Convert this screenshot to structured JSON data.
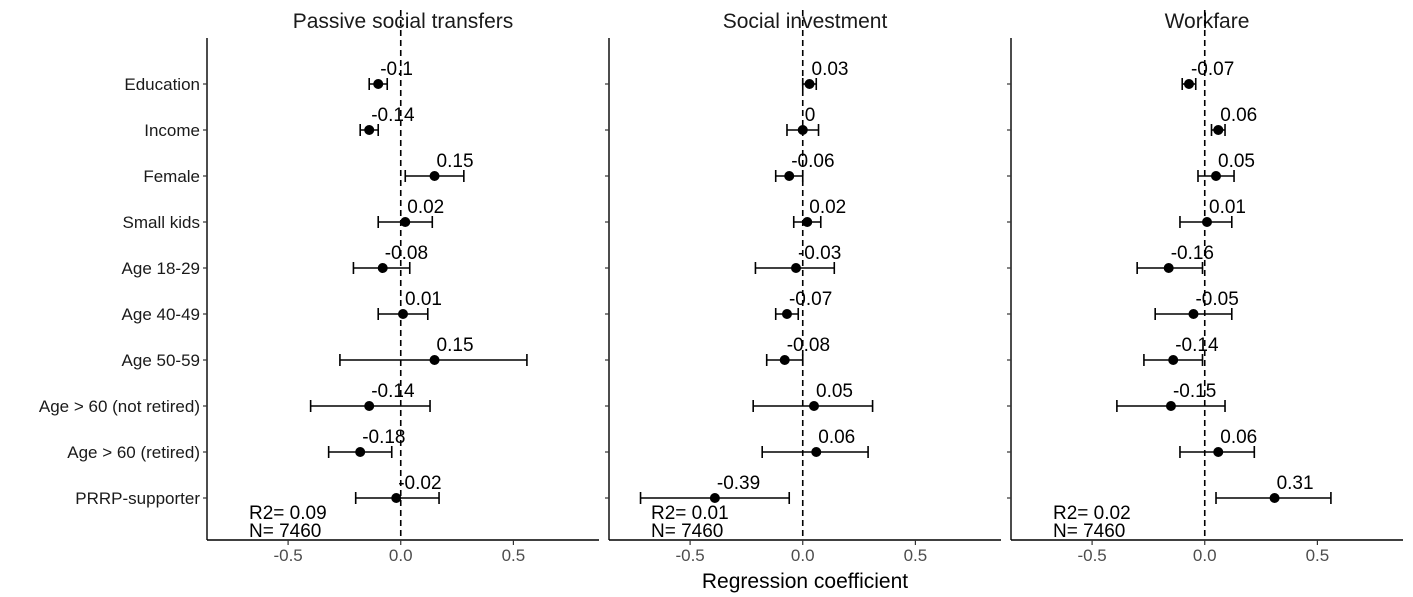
{
  "chart_data": {
    "type": "coefficient-plot",
    "xlabel": "Regression coefficient",
    "xticks": [
      -0.5,
      0.0,
      0.5
    ],
    "xtick_labels": [
      "-0.5",
      "0.0",
      "0.5"
    ],
    "xlim": [
      -0.86,
      0.88
    ],
    "reference_line": 0,
    "categories": [
      "Education",
      "Income",
      "Female",
      "Small kids",
      "Age 18-29",
      "Age 40-49",
      "Age 50-59",
      "Age > 60 (not retired)",
      "Age > 60 (retired)",
      "PRRP-supporter"
    ],
    "panels": [
      {
        "title": "Passive social transfers",
        "estimates": [
          -0.1,
          -0.14,
          0.15,
          0.02,
          -0.08,
          0.01,
          0.15,
          -0.14,
          -0.18,
          -0.02
        ],
        "labels": [
          "-0.1",
          "-0.14",
          "0.15",
          "0.02",
          "-0.08",
          "0.01",
          "0.15",
          "-0.14",
          "-0.18",
          "-0.02"
        ],
        "ci_low": [
          -0.14,
          -0.18,
          0.02,
          -0.1,
          -0.21,
          -0.1,
          -0.27,
          -0.4,
          -0.32,
          -0.2
        ],
        "ci_high": [
          -0.06,
          -0.1,
          0.28,
          0.14,
          0.04,
          0.12,
          0.56,
          0.13,
          -0.04,
          0.17
        ],
        "r2": "R2= 0.09",
        "n": "N= 7460"
      },
      {
        "title": "Social investment",
        "estimates": [
          0.03,
          0.0,
          -0.06,
          0.02,
          -0.03,
          -0.07,
          -0.08,
          0.05,
          0.06,
          -0.39
        ],
        "labels": [
          "0.03",
          "0",
          "-0.06",
          "0.02",
          "-0.03",
          "-0.07",
          "-0.08",
          "0.05",
          "0.06",
          "-0.39"
        ],
        "ci_low": [
          0.0,
          -0.07,
          -0.12,
          -0.04,
          -0.21,
          -0.12,
          -0.16,
          -0.22,
          -0.18,
          -0.72
        ],
        "ci_high": [
          0.06,
          0.07,
          0.0,
          0.08,
          0.14,
          -0.02,
          0.0,
          0.31,
          0.29,
          -0.06
        ],
        "r2": "R2= 0.01",
        "n": "N= 7460"
      },
      {
        "title": "Workfare",
        "estimates": [
          -0.07,
          0.06,
          0.05,
          0.01,
          -0.16,
          -0.05,
          -0.14,
          -0.15,
          0.06,
          0.31
        ],
        "labels": [
          "-0.07",
          "0.06",
          "0.05",
          "0.01",
          "-0.16",
          "-0.05",
          "-0.14",
          "-0.15",
          "0.06",
          "0.31"
        ],
        "ci_low": [
          -0.1,
          0.03,
          -0.03,
          -0.11,
          -0.3,
          -0.22,
          -0.27,
          -0.39,
          -0.11,
          0.05
        ],
        "ci_high": [
          -0.04,
          0.09,
          0.13,
          0.12,
          -0.01,
          0.12,
          -0.01,
          0.09,
          0.22,
          0.56
        ],
        "r2": "R2= 0.02",
        "n": "N= 7460"
      }
    ]
  }
}
